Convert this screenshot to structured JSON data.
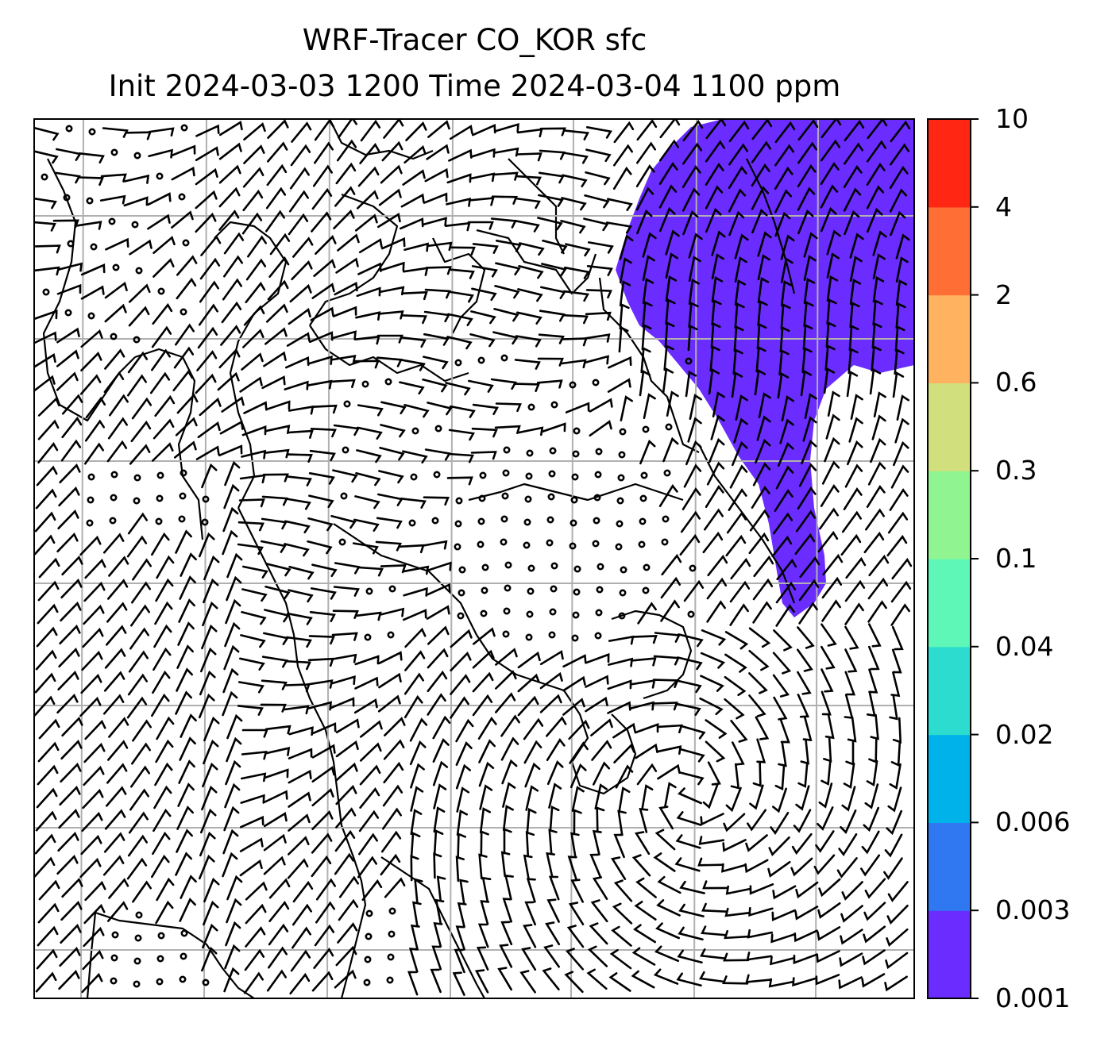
{
  "title_line1": "WRF-Tracer CO_KOR sfc",
  "title_line2": "Init 2024-03-03 1200 Time 2024-03-04 1100 ppm",
  "colorbar": {
    "ticks": [
      "0.001",
      "0.003",
      "0.006",
      "0.02",
      "0.04",
      "0.1",
      "0.3",
      "0.6",
      "2",
      "4",
      "10"
    ],
    "colors": [
      "#6a2cff",
      "#2f78f2",
      "#00b2ea",
      "#2bdccf",
      "#5ef7b8",
      "#90f590",
      "#d1e07d",
      "#ffb360",
      "#ff6e35",
      "#ff2613"
    ]
  },
  "tracer_fill_color": "#6a2cff",
  "gridline_color": "#b0b0b0"
}
